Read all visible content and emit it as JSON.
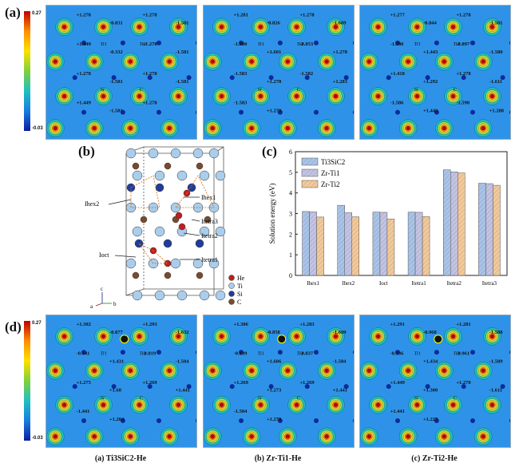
{
  "panels": {
    "a": "(a)",
    "b": "(b)",
    "c": "(c)",
    "d": "(d)"
  },
  "colorbar": {
    "max": "0.27",
    "min": "-0.03"
  },
  "charge_maps_top": [
    {
      "id": "a1",
      "labels": [
        "+1.278",
        "-0.831",
        "+1.278",
        "-1.581",
        "+1.449",
        "-0.332",
        "+1.278",
        "-1.581",
        "+1.278",
        "-1.581",
        "+1.278",
        "-1.581",
        "+1.449",
        "-1.581",
        "+1.278"
      ]
    },
    {
      "id": "a2",
      "labels": [
        "+1.281",
        "-0.826",
        "+1.278",
        "-1.609",
        "-1.580",
        "+1.601",
        "-0.853",
        "+1.278",
        "-1.583",
        "+1.278",
        "-1.582",
        "+1.283",
        "-1.583",
        "+1.279"
      ]
    },
    {
      "id": "a3",
      "labels": [
        "+1.277",
        "-0.844",
        "+1.278",
        "-1.581",
        "-1.580",
        "+1.443",
        "-0.897",
        "-1.580",
        "+1.418",
        "+1.292",
        "+1.278",
        "-1.611",
        "-1.586",
        "+1.443",
        "-1.590",
        "+1.288"
      ]
    }
  ],
  "charge_maps_bottom": [
    {
      "id": "d1",
      "labels": [
        "+1.302",
        "-0.877",
        "+1.293",
        "-1.632",
        "-0.141",
        "+1.431",
        "-0.819",
        "-1.584",
        "+1.275",
        "+1.68",
        "+1.269",
        "+1.441",
        "-1.441",
        "+1.284"
      ]
    },
    {
      "id": "d2",
      "labels": [
        "+1.306",
        "-0.858",
        "+1.283",
        "-1.609",
        "-0.139",
        "+1.606",
        "-0.837",
        "-1.584",
        "+1.269",
        "+1.273",
        "+1.269",
        "+1.441",
        "-1.584",
        "+1.279"
      ]
    },
    {
      "id": "d3",
      "labels": [
        "+1.291",
        "-0.968",
        "+1.281",
        "-1.588",
        "-0.136",
        "+1.434",
        "-0.961",
        "-1.589",
        "+1.449",
        "+1.300",
        "+1.270",
        "-1.611",
        "+1.441",
        "+1.227"
      ]
    }
  ],
  "atom_labels": [
    "Ti1",
    "Ti2",
    "Si",
    "C",
    "He",
    "Zr"
  ],
  "structure": {
    "sites": [
      "Ihex1",
      "Ihex2",
      "Itetra3",
      "Itetra2",
      "Ioct",
      "Itetra1"
    ],
    "legend": [
      "He",
      "Ti",
      "Si",
      "C"
    ],
    "axes": [
      "c",
      "a",
      "b"
    ]
  },
  "chart_data": {
    "type": "bar",
    "categories": [
      "Ihex1",
      "Ihex2",
      "Ioct",
      "Itetra1",
      "Itetra2",
      "Itetra3"
    ],
    "series": [
      {
        "name": "Ti3SiC2",
        "values": [
          3.1,
          3.4,
          3.07,
          3.07,
          5.12,
          4.47
        ]
      },
      {
        "name": "Zr-Ti1",
        "values": [
          3.08,
          3.04,
          3.06,
          3.06,
          5.02,
          4.45
        ]
      },
      {
        "name": "Zr-Ti2",
        "values": [
          2.83,
          2.84,
          2.74,
          2.85,
          4.97,
          4.37
        ]
      }
    ],
    "ylabel": "Solution energy (eV)",
    "ylim": [
      0,
      6
    ],
    "yticks": [
      0,
      1,
      2,
      3,
      4,
      5,
      6
    ],
    "colors": [
      "#a9c4e8",
      "#c3c3e3",
      "#f3c99a"
    ],
    "legend_position": "top-left"
  },
  "captions": [
    "(a) Ti3SiC2-He",
    "(b) Zr-Ti1-He",
    "(c) Zr-Ti2-He"
  ]
}
